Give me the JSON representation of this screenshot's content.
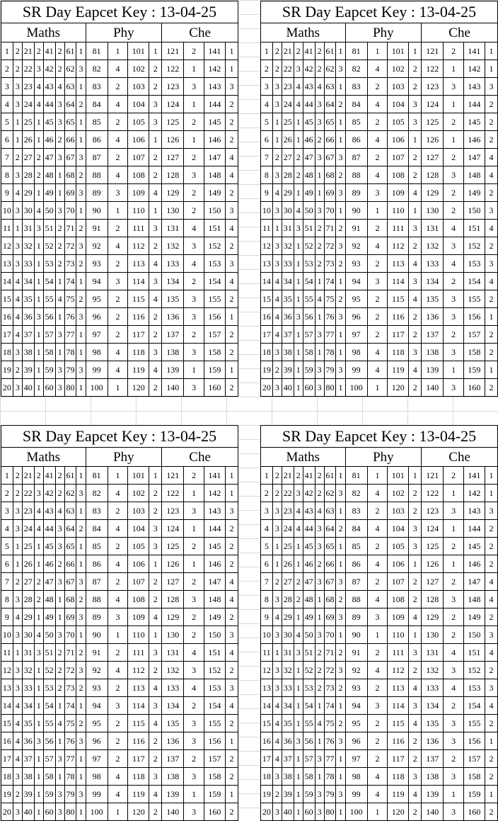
{
  "title": "SR Day Eapcet Key : 13-04-25",
  "subjects": [
    "Maths",
    "Phy",
    "Che"
  ],
  "rows": [
    [
      "1",
      "2",
      "21",
      "2",
      "41",
      "2",
      "61",
      "1",
      "81",
      "1",
      "101",
      "1",
      "121",
      "2",
      "141",
      "1"
    ],
    [
      "2",
      "2",
      "22",
      "3",
      "42",
      "2",
      "62",
      "3",
      "82",
      "4",
      "102",
      "2",
      "122",
      "1",
      "142",
      "1"
    ],
    [
      "3",
      "3",
      "23",
      "4",
      "43",
      "4",
      "63",
      "1",
      "83",
      "2",
      "103",
      "2",
      "123",
      "3",
      "143",
      "3"
    ],
    [
      "4",
      "3",
      "24",
      "4",
      "44",
      "3",
      "64",
      "2",
      "84",
      "4",
      "104",
      "3",
      "124",
      "1",
      "144",
      "2"
    ],
    [
      "5",
      "1",
      "25",
      "1",
      "45",
      "3",
      "65",
      "1",
      "85",
      "2",
      "105",
      "3",
      "125",
      "2",
      "145",
      "2"
    ],
    [
      "6",
      "1",
      "26",
      "1",
      "46",
      "2",
      "66",
      "1",
      "86",
      "4",
      "106",
      "1",
      "126",
      "1",
      "146",
      "2"
    ],
    [
      "7",
      "2",
      "27",
      "2",
      "47",
      "3",
      "67",
      "3",
      "87",
      "2",
      "107",
      "2",
      "127",
      "2",
      "147",
      "4"
    ],
    [
      "8",
      "3",
      "28",
      "2",
      "48",
      "1",
      "68",
      "2",
      "88",
      "4",
      "108",
      "2",
      "128",
      "3",
      "148",
      "4"
    ],
    [
      "9",
      "4",
      "29",
      "1",
      "49",
      "1",
      "69",
      "3",
      "89",
      "3",
      "109",
      "4",
      "129",
      "2",
      "149",
      "2"
    ],
    [
      "10",
      "3",
      "30",
      "4",
      "50",
      "3",
      "70",
      "1",
      "90",
      "1",
      "110",
      "1",
      "130",
      "2",
      "150",
      "3"
    ],
    [
      "11",
      "1",
      "31",
      "3",
      "51",
      "2",
      "71",
      "2",
      "91",
      "2",
      "111",
      "3",
      "131",
      "4",
      "151",
      "4"
    ],
    [
      "12",
      "3",
      "32",
      "1",
      "52",
      "2",
      "72",
      "3",
      "92",
      "4",
      "112",
      "2",
      "132",
      "3",
      "152",
      "2"
    ],
    [
      "13",
      "3",
      "33",
      "1",
      "53",
      "2",
      "73",
      "2",
      "93",
      "2",
      "113",
      "4",
      "133",
      "4",
      "153",
      "3"
    ],
    [
      "14",
      "4",
      "34",
      "1",
      "54",
      "1",
      "74",
      "1",
      "94",
      "3",
      "114",
      "3",
      "134",
      "2",
      "154",
      "4"
    ],
    [
      "15",
      "4",
      "35",
      "1",
      "55",
      "4",
      "75",
      "2",
      "95",
      "2",
      "115",
      "4",
      "135",
      "3",
      "155",
      "2"
    ],
    [
      "16",
      "4",
      "36",
      "3",
      "56",
      "1",
      "76",
      "3",
      "96",
      "2",
      "116",
      "2",
      "136",
      "3",
      "156",
      "1"
    ],
    [
      "17",
      "4",
      "37",
      "1",
      "57",
      "3",
      "77",
      "1",
      "97",
      "2",
      "117",
      "2",
      "137",
      "2",
      "157",
      "2"
    ],
    [
      "18",
      "3",
      "38",
      "1",
      "58",
      "1",
      "78",
      "1",
      "98",
      "4",
      "118",
      "3",
      "138",
      "3",
      "158",
      "2"
    ],
    [
      "19",
      "2",
      "39",
      "1",
      "59",
      "3",
      "79",
      "3",
      "99",
      "4",
      "119",
      "4",
      "139",
      "1",
      "159",
      "1"
    ],
    [
      "20",
      "3",
      "40",
      "1",
      "60",
      "3",
      "80",
      "1",
      "100",
      "1",
      "120",
      "2",
      "140",
      "3",
      "160",
      "2"
    ]
  ]
}
